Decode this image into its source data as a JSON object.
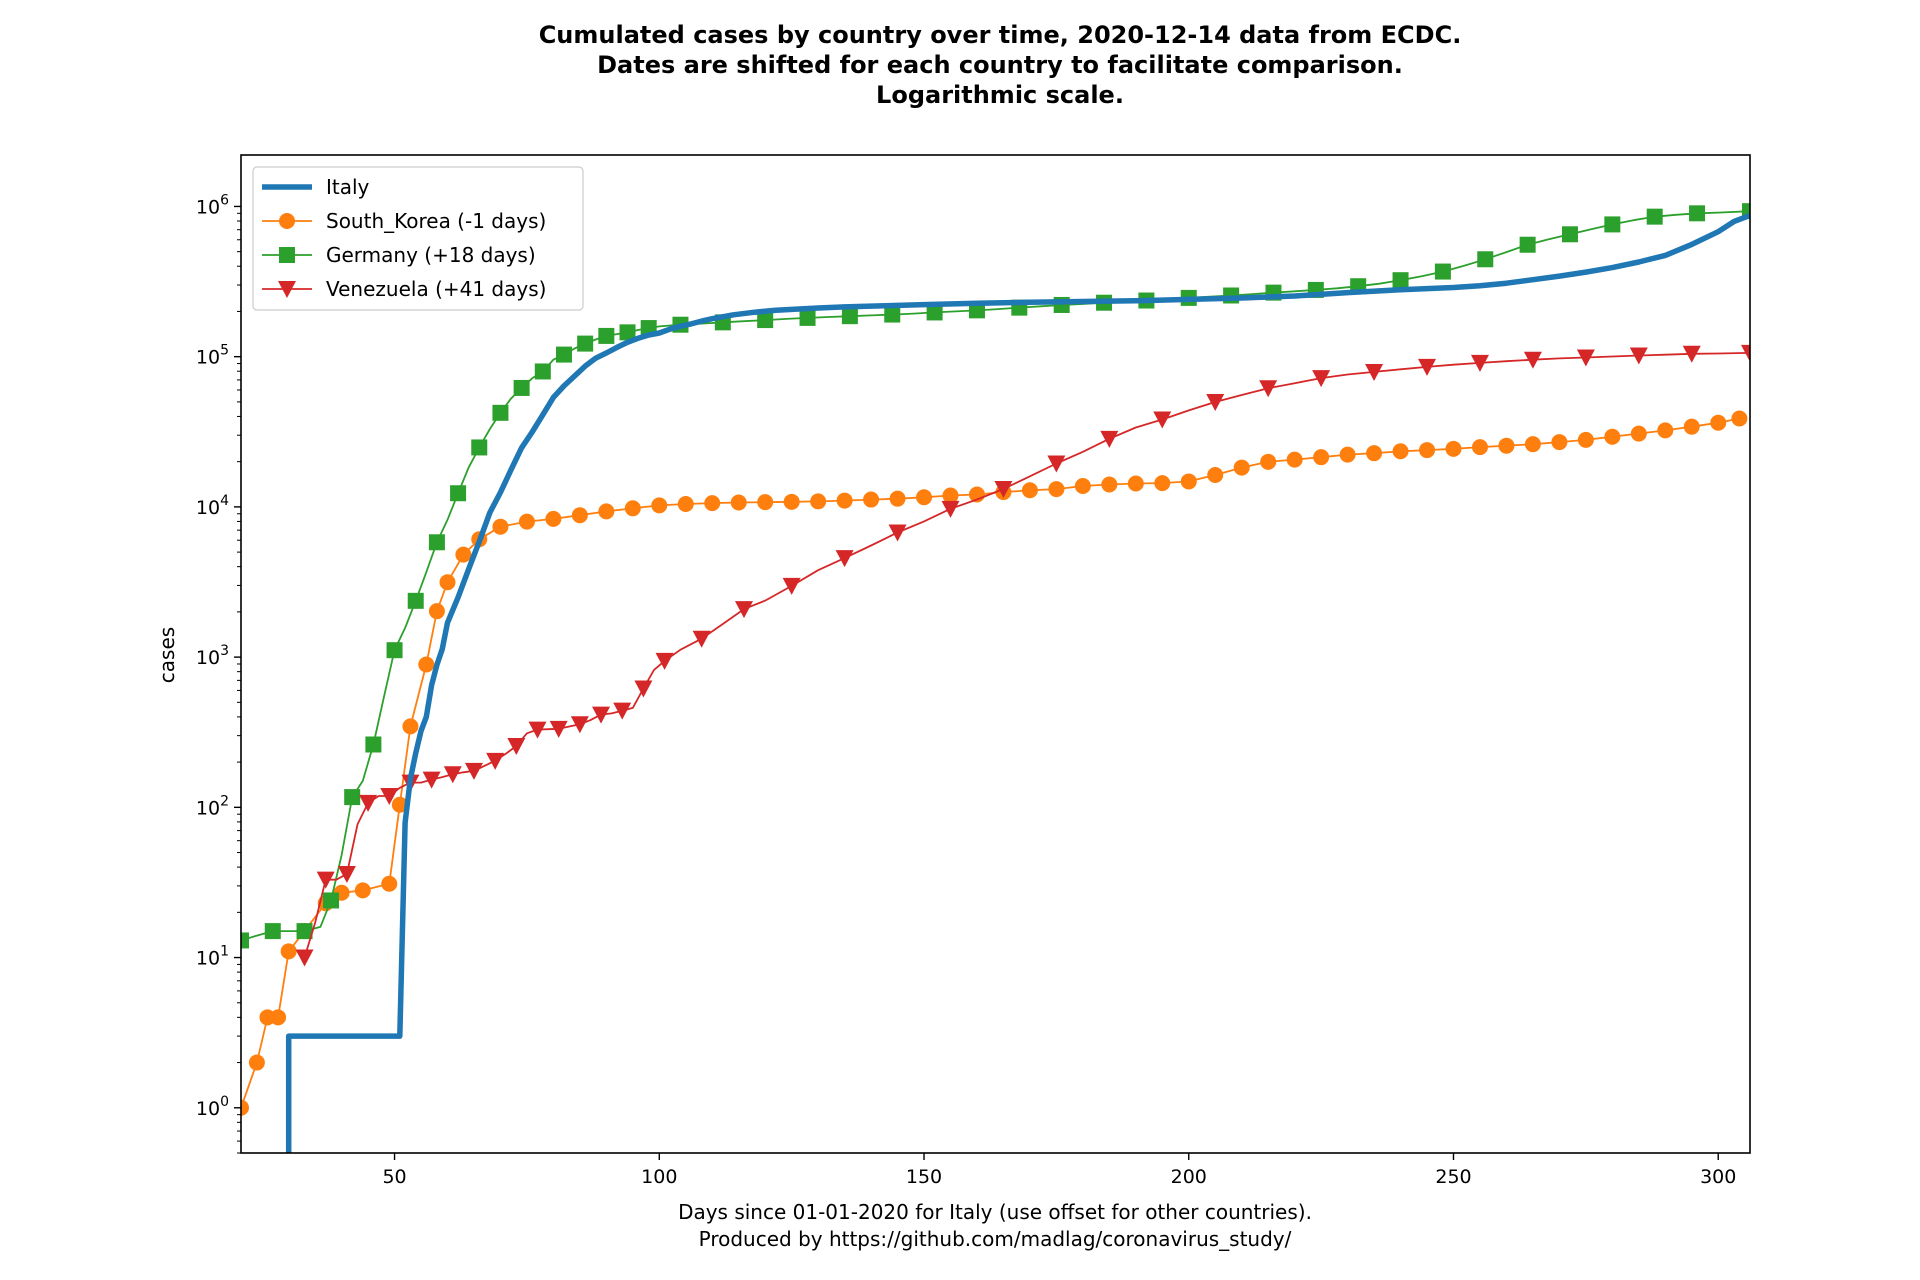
{
  "chart_data": {
    "type": "line",
    "title_lines": [
      "Cumulated cases by country over time, 2020-12-14 data from ECDC.",
      "Dates are shifted for each country to facilitate comparison.",
      "Logarithmic scale."
    ],
    "xlabel_lines": [
      "Days since 01-01-2020 for Italy (use offset for other countries).",
      "Produced by https://github.com/madlag/coronavirus_study/"
    ],
    "ylabel": "cases",
    "xlim": [
      21,
      306
    ],
    "ylim": [
      0.5,
      2200000
    ],
    "yscale": "log",
    "grid": false,
    "legend_position": "top-left",
    "x_ticks": [
      50,
      100,
      150,
      200,
      250,
      300
    ],
    "y_ticks": [
      {
        "value": 1,
        "base": "10",
        "exp": "0"
      },
      {
        "value": 10,
        "base": "10",
        "exp": "1"
      },
      {
        "value": 100,
        "base": "10",
        "exp": "2"
      },
      {
        "value": 1000,
        "base": "10",
        "exp": "3"
      },
      {
        "value": 10000,
        "base": "10",
        "exp": "4"
      },
      {
        "value": 100000,
        "base": "10",
        "exp": "5"
      },
      {
        "value": 1000000,
        "base": "10",
        "exp": "6"
      }
    ],
    "series": [
      {
        "name": "Italy",
        "color": "#1f77b4",
        "marker": "none",
        "points": [
          [
            30,
            0.5
          ],
          [
            30,
            3
          ],
          [
            51,
            3
          ],
          [
            52,
            79
          ],
          [
            53,
            155
          ],
          [
            54,
            229
          ],
          [
            55,
            322
          ],
          [
            56,
            400
          ],
          [
            57,
            650
          ],
          [
            58,
            888
          ],
          [
            59,
            1128
          ],
          [
            60,
            1694
          ],
          [
            62,
            2502
          ],
          [
            64,
            3858
          ],
          [
            66,
            5883
          ],
          [
            68,
            9172
          ],
          [
            70,
            12462
          ],
          [
            72,
            17660
          ],
          [
            74,
            24747
          ],
          [
            76,
            31506
          ],
          [
            78,
            41035
          ],
          [
            80,
            53578
          ],
          [
            82,
            63927
          ],
          [
            84,
            74386
          ],
          [
            86,
            86498
          ],
          [
            88,
            97689
          ],
          [
            90,
            105792
          ],
          [
            92,
            115242
          ],
          [
            94,
            124632
          ],
          [
            96,
            132547
          ],
          [
            98,
            139422
          ],
          [
            100,
            143626
          ],
          [
            102,
            152271
          ],
          [
            104,
            159516
          ],
          [
            106,
            165155
          ],
          [
            108,
            172434
          ],
          [
            110,
            178972
          ],
          [
            114,
            189973
          ],
          [
            118,
            197675
          ],
          [
            122,
            203591
          ],
          [
            126,
            207428
          ],
          [
            130,
            210717
          ],
          [
            135,
            214457
          ],
          [
            140,
            217185
          ],
          [
            150,
            222104
          ],
          [
            160,
            226699
          ],
          [
            170,
            230158
          ],
          [
            180,
            233019
          ],
          [
            190,
            235278
          ],
          [
            200,
            240578
          ],
          [
            210,
            245864
          ],
          [
            220,
            253438
          ],
          [
            230,
            266853
          ],
          [
            240,
            279000
          ],
          [
            250,
            288761
          ],
          [
            255,
            296569
          ],
          [
            260,
            308104
          ],
          [
            265,
            325329
          ],
          [
            270,
            343770
          ],
          [
            275,
            365467
          ],
          [
            280,
            391611
          ],
          [
            285,
            426632
          ],
          [
            290,
            472348
          ],
          [
            295,
            558636
          ],
          [
            300,
            679430
          ],
          [
            303,
            795000
          ],
          [
            306,
            870000
          ]
        ]
      },
      {
        "name": "South_Korea (-1 days)",
        "color": "#ff7f0e",
        "marker": "circle",
        "points": [
          [
            21,
            1
          ],
          [
            24,
            2
          ],
          [
            26,
            4
          ],
          [
            28,
            4
          ],
          [
            30,
            11
          ],
          [
            33,
            15
          ],
          [
            37,
            23
          ],
          [
            40,
            27
          ],
          [
            44,
            28
          ],
          [
            49,
            31
          ],
          [
            51,
            104
          ],
          [
            53,
            346
          ],
          [
            56,
            893
          ],
          [
            58,
            2022
          ],
          [
            60,
            3150
          ],
          [
            63,
            4812
          ],
          [
            66,
            6088
          ],
          [
            70,
            7382
          ],
          [
            75,
            7979
          ],
          [
            80,
            8320
          ],
          [
            85,
            8799
          ],
          [
            90,
            9332
          ],
          [
            95,
            9786
          ],
          [
            100,
            10237
          ],
          [
            105,
            10450
          ],
          [
            110,
            10591
          ],
          [
            115,
            10694
          ],
          [
            120,
            10752
          ],
          [
            125,
            10806
          ],
          [
            130,
            10874
          ],
          [
            135,
            11014
          ],
          [
            140,
            11190
          ],
          [
            145,
            11344
          ],
          [
            150,
            11590
          ],
          [
            155,
            11902
          ],
          [
            160,
            12085
          ],
          [
            165,
            12535
          ],
          [
            170,
            12904
          ],
          [
            175,
            13137
          ],
          [
            180,
            13771
          ],
          [
            185,
            14092
          ],
          [
            190,
            14305
          ],
          [
            195,
            14389
          ],
          [
            200,
            14770
          ],
          [
            205,
            16297
          ],
          [
            210,
            18265
          ],
          [
            215,
            19947
          ],
          [
            220,
            20644
          ],
          [
            225,
            21431
          ],
          [
            230,
            22285
          ],
          [
            235,
            22783
          ],
          [
            240,
            23455
          ],
          [
            245,
            23889
          ],
          [
            250,
            24353
          ],
          [
            255,
            24988
          ],
          [
            260,
            25543
          ],
          [
            265,
            26146
          ],
          [
            270,
            27000
          ],
          [
            275,
            27932
          ],
          [
            280,
            29311
          ],
          [
            285,
            30733
          ],
          [
            290,
            32318
          ],
          [
            295,
            34201
          ],
          [
            300,
            36332
          ],
          [
            304,
            38755
          ]
        ]
      },
      {
        "name": "Germany (+18 days)",
        "color": "#2ca02c",
        "marker": "square",
        "points": [
          [
            21,
            13
          ],
          [
            24,
            14
          ],
          [
            27,
            15
          ],
          [
            30,
            15
          ],
          [
            33,
            15
          ],
          [
            36,
            16
          ],
          [
            38,
            24
          ],
          [
            40,
            48
          ],
          [
            42,
            117
          ],
          [
            44,
            150
          ],
          [
            46,
            262
          ],
          [
            48,
            545
          ],
          [
            50,
            1112
          ],
          [
            52,
            1565
          ],
          [
            54,
            2369
          ],
          [
            56,
            3675
          ],
          [
            58,
            5813
          ],
          [
            60,
            8198
          ],
          [
            62,
            12327
          ],
          [
            64,
            18323
          ],
          [
            66,
            24873
          ],
          [
            68,
            32986
          ],
          [
            70,
            42288
          ],
          [
            72,
            52547
          ],
          [
            74,
            61913
          ],
          [
            76,
            71808
          ],
          [
            78,
            79696
          ],
          [
            80,
            95391
          ],
          [
            82,
            103228
          ],
          [
            84,
            113296
          ],
          [
            86,
            122171
          ],
          [
            88,
            130072
          ],
          [
            90,
            137439
          ],
          [
            92,
            141397
          ],
          [
            94,
            145184
          ],
          [
            96,
            150383
          ],
          [
            98,
            154999
          ],
          [
            100,
            159119
          ],
          [
            104,
            163175
          ],
          [
            108,
            166091
          ],
          [
            112,
            169218
          ],
          [
            116,
            172239
          ],
          [
            120,
            175210
          ],
          [
            124,
            178281
          ],
          [
            128,
            181200
          ],
          [
            132,
            183765
          ],
          [
            136,
            186022
          ],
          [
            140,
            188252
          ],
          [
            144,
            190670
          ],
          [
            148,
            193499
          ],
          [
            152,
            196944
          ],
          [
            156,
            200180
          ],
          [
            160,
            203368
          ],
          [
            164,
            207422
          ],
          [
            168,
            212022
          ],
          [
            172,
            216327
          ],
          [
            176,
            220859
          ],
          [
            180,
            224014
          ],
          [
            184,
            228621
          ],
          [
            188,
            232082
          ],
          [
            192,
            236429
          ],
          [
            196,
            241771
          ],
          [
            200,
            246166
          ],
          [
            204,
            251058
          ],
          [
            208,
            255366
          ],
          [
            212,
            260817
          ],
          [
            216,
            266869
          ],
          [
            220,
            272337
          ],
          [
            224,
            278070
          ],
          [
            228,
            285332
          ],
          [
            232,
            294395
          ],
          [
            236,
            306086
          ],
          [
            240,
            322864
          ],
          [
            244,
            342834
          ],
          [
            248,
            368599
          ],
          [
            252,
            403291
          ],
          [
            256,
            445009
          ],
          [
            260,
            497003
          ],
          [
            264,
            555993
          ],
          [
            268,
            605230
          ],
          [
            272,
            652516
          ],
          [
            276,
            704698
          ],
          [
            280,
            759255
          ],
          [
            284,
            809716
          ],
          [
            288,
            855000
          ],
          [
            292,
            880000
          ],
          [
            296,
            900000
          ],
          [
            300,
            910000
          ],
          [
            306,
            930000
          ]
        ]
      },
      {
        "name": "Venezuela (+41 days)",
        "color": "#d62728",
        "marker": "triangle-down",
        "points": [
          [
            33,
            10
          ],
          [
            35,
            17
          ],
          [
            37,
            33
          ],
          [
            39,
            33
          ],
          [
            41,
            36
          ],
          [
            43,
            77
          ],
          [
            45,
            107
          ],
          [
            47,
            119
          ],
          [
            49,
            119
          ],
          [
            51,
            135
          ],
          [
            53,
            146
          ],
          [
            55,
            146
          ],
          [
            57,
            153
          ],
          [
            59,
            159
          ],
          [
            61,
            166
          ],
          [
            63,
            171
          ],
          [
            65,
            175
          ],
          [
            67,
            189
          ],
          [
            69,
            204
          ],
          [
            71,
            227
          ],
          [
            73,
            256
          ],
          [
            75,
            311
          ],
          [
            77,
            329
          ],
          [
            79,
            331
          ],
          [
            81,
            333
          ],
          [
            83,
            345
          ],
          [
            85,
            357
          ],
          [
            87,
            381
          ],
          [
            89,
            414
          ],
          [
            91,
            422
          ],
          [
            93,
            440
          ],
          [
            95,
            459
          ],
          [
            97,
            618
          ],
          [
            99,
            822
          ],
          [
            101,
            944
          ],
          [
            104,
            1121
          ],
          [
            108,
            1325
          ],
          [
            112,
            1662
          ],
          [
            116,
            2087
          ],
          [
            120,
            2377
          ],
          [
            125,
            2978
          ],
          [
            130,
            3789
          ],
          [
            135,
            4563
          ],
          [
            140,
            5530
          ],
          [
            145,
            6750
          ],
          [
            150,
            8010
          ],
          [
            155,
            9707
          ],
          [
            160,
            11191
          ],
          [
            165,
            13164
          ],
          [
            170,
            15988
          ],
          [
            175,
            19443
          ],
          [
            180,
            23280
          ],
          [
            185,
            28381
          ],
          [
            190,
            33755
          ],
          [
            195,
            38140
          ],
          [
            200,
            43879
          ],
          [
            205,
            49877
          ],
          [
            210,
            55563
          ],
          [
            215,
            61680
          ],
          [
            220,
            66538
          ],
          [
            225,
            71940
          ],
          [
            230,
            76029
          ],
          [
            235,
            79117
          ],
          [
            240,
            82453
          ],
          [
            245,
            85461
          ],
          [
            250,
            88416
          ],
          [
            255,
            90876
          ],
          [
            260,
            93257
          ],
          [
            265,
            95445
          ],
          [
            270,
            97341
          ],
          [
            275,
            98770
          ],
          [
            280,
            100283
          ],
          [
            285,
            101850
          ],
          [
            290,
            103055
          ],
          [
            295,
            104490
          ],
          [
            300,
            105000
          ],
          [
            306,
            106000
          ]
        ]
      }
    ]
  }
}
